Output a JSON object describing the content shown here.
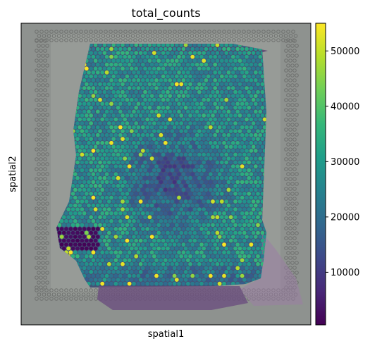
{
  "chart_data": {
    "type": "heatmap",
    "title": "total_counts",
    "xlabel": "spatial1",
    "ylabel": "spatial2",
    "colorbar": {
      "colormap": "viridis",
      "range": [
        500,
        55000
      ],
      "ticks": [
        10000,
        20000,
        30000,
        40000,
        50000
      ],
      "tick_labels": [
        "10000",
        "20000",
        "30000",
        "40000",
        "50000"
      ]
    },
    "x_ticks": [],
    "y_ticks": [],
    "grid": false,
    "background": "tissue image (H&E) with fiducial frame",
    "typical_value": 30000
  },
  "colors": {
    "viridis": [
      "#440154",
      "#482878",
      "#3e4989",
      "#31688e",
      "#26828e",
      "#1f9e89",
      "#35b779",
      "#6ece58",
      "#b5de2b",
      "#fde725"
    ],
    "background_gray": "#8e928f",
    "tissue_pink": "#9a7ea4"
  }
}
